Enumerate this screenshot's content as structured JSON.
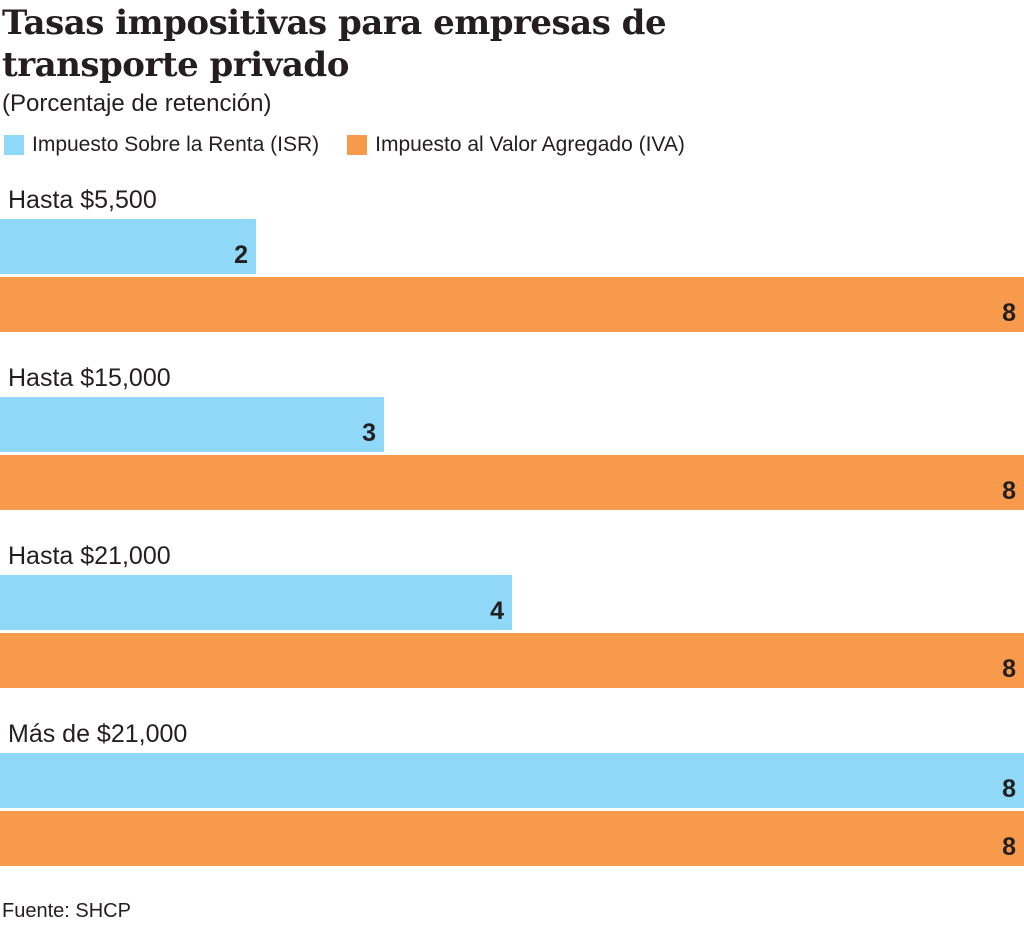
{
  "chart_data": {
    "type": "bar",
    "orientation": "horizontal",
    "title": "Tasas impositivas para empresas de transporte privado",
    "subtitle": "(Porcentaje de retención)",
    "categories": [
      "Hasta $5,500",
      "Hasta $15,000",
      "Hasta $21,000",
      "Más de $21,000"
    ],
    "series": [
      {
        "name": "Impuesto Sobre la Renta (ISR)",
        "color": "#8fd8f7",
        "values": [
          2,
          3,
          4,
          8
        ]
      },
      {
        "name": "Impuesto al Valor Agregado (IVA)",
        "color": "#f79a4b",
        "values": [
          8,
          8,
          8,
          8
        ]
      }
    ],
    "xlim": [
      0,
      8
    ],
    "grid": false,
    "legend_position": "top-left",
    "source": "Fuente: SHCP"
  }
}
